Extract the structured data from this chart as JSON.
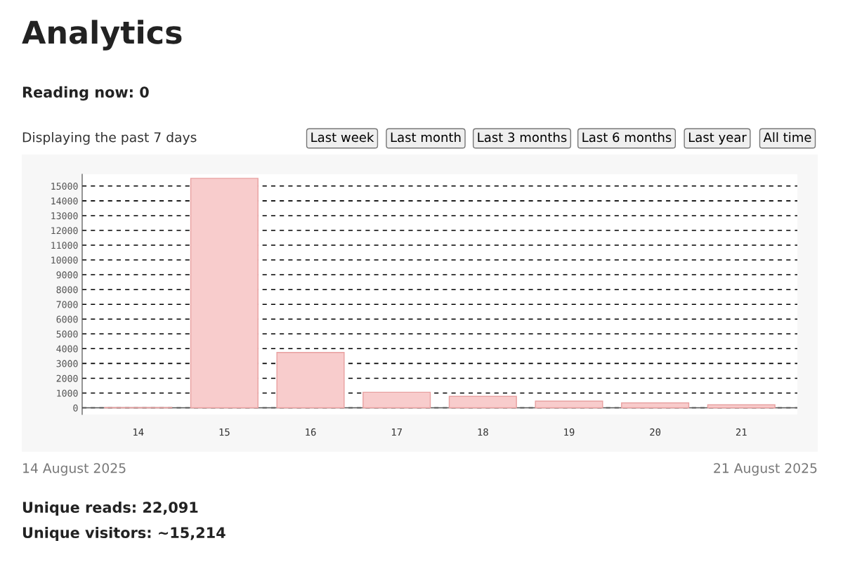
{
  "chart_data": {
    "type": "bar",
    "title": "Analytics",
    "categories": [
      "14",
      "15",
      "16",
      "17",
      "18",
      "19",
      "20",
      "21"
    ],
    "values": [
      20,
      15520,
      3740,
      1050,
      770,
      450,
      330,
      200
    ],
    "color": "#f8cccc",
    "ylim": [
      0,
      15800
    ],
    "yticks": [
      0,
      1000,
      2000,
      3000,
      4000,
      5000,
      6000,
      7000,
      8000,
      9000,
      10000,
      11000,
      12000,
      13000,
      14000,
      15000
    ],
    "grid": "y",
    "annotations": [
      "Reading now: 0",
      "Displaying the past 7 days",
      "Last week",
      "Last month",
      "Last 3 months",
      "Last 6 months",
      "Last year",
      "All time",
      "14 August 2025",
      "21 August 2025",
      "Unique reads: 22,091",
      "Unique visitors: ~15,214"
    ]
  }
}
